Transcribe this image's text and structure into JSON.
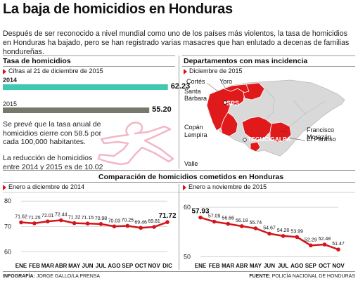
{
  "title": "La baja de homicidios en Honduras",
  "intro": "Después de ser reconocido a nivel mundial como uno de los países más violentos, la tasa de homicidios en Honduras ha bajado, pero se han registrado varias masacres que han enlutado a decenas de familias hondureñas.",
  "tasa": {
    "heading": "Tasa de homicidios",
    "subheading": "Cifras al 21 de diciembre de 2015",
    "note1": "Se prevé que la tasa anual de homicidios cierre con 58.5 por cada 100,000 habitantes.",
    "note2": "La reducción de homicidios entre 2014 y 2015 es de 10.02"
  },
  "departamentos": {
    "heading": "Departamentos con mas incidencia",
    "subheading": "Diciembre de 2015",
    "labels": [
      "Cortés",
      "Yoro",
      "Santa Bárbara",
      "SPS",
      "Copán",
      "Lempira",
      "Francisco Morazán",
      "TEGUCIGALPA",
      "El Paraíso",
      "Valle"
    ]
  },
  "comparacion": {
    "heading": "Comparación de homicidios cometidos en Honduras",
    "left_sub": "Enero a diciembre de 2014",
    "right_sub": "Enero a noviembre de 2015"
  },
  "footer": {
    "left_label": "INFOGRAFÍA:",
    "left_value": "JORGE GALLO/LA PRENSA",
    "right_label": "FUENTE:",
    "right_value": "POLICÍA NACIONAL DE HONDURAS"
  },
  "colors": {
    "bar2014": "#3ec9b0",
    "bar2015": "#77776a",
    "line": "#d3151b",
    "map_red": "#e0191b",
    "map_grey": "#d9d9d9"
  },
  "chart_data": [
    {
      "type": "bar",
      "categories": [
        "2014",
        "2015"
      ],
      "values": [
        62.23,
        55.2
      ],
      "value_labels": [
        "62.23",
        "55.20"
      ],
      "xlim": [
        0,
        70
      ]
    },
    {
      "type": "line",
      "categories": [
        "ENE",
        "FEB",
        "MAR",
        "ABR",
        "MAY",
        "JUN",
        "JUL",
        "AGO",
        "SEP",
        "OCT",
        "NOV",
        "DIC"
      ],
      "values": [
        71.62,
        71.25,
        72.01,
        72.44,
        71.32,
        71.15,
        70.98,
        70.03,
        70.25,
        69.46,
        69.81,
        71.72
      ],
      "value_labels": [
        "71.62",
        "71.25",
        "72.01",
        "72.44",
        "71.32",
        "71.15",
        "70.98",
        "70.03",
        "70.25",
        "69.46",
        "69.81",
        "71.72"
      ],
      "yticks": [
        "80",
        "70",
        "60"
      ],
      "ylim": [
        56,
        82
      ]
    },
    {
      "type": "line",
      "categories": [
        "ENE",
        "FEB",
        "MAR",
        "ABR",
        "MAY",
        "JUN",
        "JUL",
        "AGO",
        "SEP",
        "OCT",
        "NOV"
      ],
      "values": [
        57.93,
        57.09,
        56.66,
        56.18,
        55.74,
        54.67,
        54.2,
        53.99,
        52.29,
        52.48,
        51.47
      ],
      "value_labels": [
        "57.93",
        "57.09",
        "56.66",
        "56.18",
        "55.74",
        "54.67",
        "54.20",
        "53.99",
        "52.29",
        "52.48",
        "51.47"
      ],
      "yticks": [
        "60",
        "50"
      ],
      "ylim": [
        49.5,
        62
      ]
    }
  ]
}
